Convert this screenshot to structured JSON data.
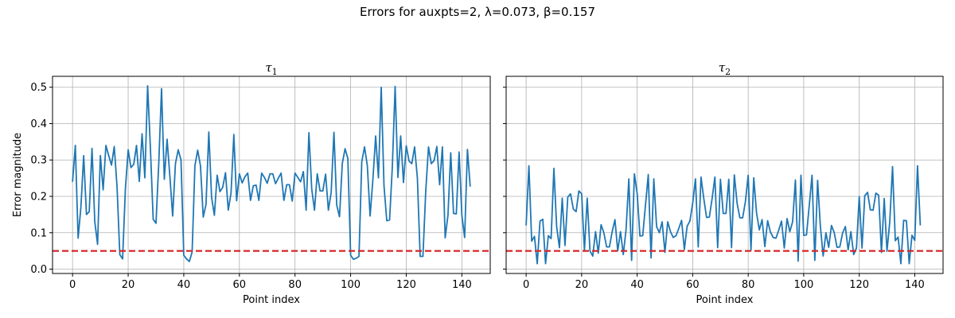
{
  "figure": {
    "suptitle": "Errors for auxpts=2, λ=0.073, β=0.157"
  },
  "chart_data": [
    {
      "type": "line",
      "title": "τ",
      "title_subscript": "1",
      "xlabel": "Point index",
      "ylabel": "Error magnitude",
      "xlim": [
        -7.2,
        150.2
      ],
      "ylim": [
        -0.012,
        0.53
      ],
      "xticks": [
        0,
        20,
        40,
        60,
        80,
        100,
        120,
        140
      ],
      "yticks": [
        0.0,
        0.1,
        0.2,
        0.3,
        0.4,
        0.5
      ],
      "ytick_labels": [
        "0.0",
        "0.1",
        "0.2",
        "0.3",
        "0.4",
        "0.5"
      ],
      "grid": true,
      "series_color": "#1f77b4",
      "threshold": {
        "y": 0.05,
        "color": "#d62728",
        "style": "dashed"
      },
      "x_start": 0,
      "values": [
        0.24,
        0.34,
        0.085,
        0.17,
        0.312,
        0.15,
        0.158,
        0.332,
        0.13,
        0.068,
        0.312,
        0.218,
        0.34,
        0.312,
        0.286,
        0.337,
        0.226,
        0.04,
        0.028,
        0.22,
        0.328,
        0.279,
        0.288,
        0.34,
        0.241,
        0.372,
        0.251,
        0.504,
        0.332,
        0.137,
        0.126,
        0.29,
        0.496,
        0.247,
        0.357,
        0.255,
        0.146,
        0.29,
        0.328,
        0.3,
        0.038,
        0.028,
        0.021,
        0.047,
        0.284,
        0.327,
        0.284,
        0.143,
        0.178,
        0.377,
        0.197,
        0.148,
        0.258,
        0.213,
        0.225,
        0.265,
        0.162,
        0.21,
        0.37,
        0.188,
        0.262,
        0.237,
        0.254,
        0.264,
        0.189,
        0.229,
        0.231,
        0.189,
        0.264,
        0.252,
        0.236,
        0.262,
        0.262,
        0.235,
        0.25,
        0.264,
        0.189,
        0.232,
        0.232,
        0.187,
        0.264,
        0.252,
        0.24,
        0.268,
        0.162,
        0.375,
        0.221,
        0.162,
        0.262,
        0.215,
        0.215,
        0.261,
        0.162,
        0.211,
        0.376,
        0.176,
        0.144,
        0.29,
        0.331,
        0.304,
        0.038,
        0.027,
        0.03,
        0.035,
        0.295,
        0.336,
        0.285,
        0.146,
        0.246,
        0.366,
        0.251,
        0.5,
        0.229,
        0.133,
        0.135,
        0.282,
        0.502,
        0.252,
        0.366,
        0.238,
        0.339,
        0.297,
        0.29,
        0.336,
        0.251,
        0.035,
        0.035,
        0.213,
        0.336,
        0.29,
        0.298,
        0.337,
        0.232,
        0.336,
        0.086,
        0.148,
        0.32,
        0.153,
        0.152,
        0.322,
        0.147,
        0.087,
        0.329,
        0.227
      ]
    },
    {
      "type": "line",
      "title": "τ",
      "title_subscript": "2",
      "xlabel": "Point index",
      "ylabel": "",
      "xlim": [
        -7.2,
        150.2
      ],
      "ylim": [
        -0.012,
        0.53
      ],
      "xticks": [
        0,
        20,
        40,
        60,
        80,
        100,
        120,
        140
      ],
      "yticks": [
        0.0,
        0.1,
        0.2,
        0.3,
        0.4,
        0.5
      ],
      "ytick_labels": [],
      "grid": true,
      "series_color": "#1f77b4",
      "threshold": {
        "y": 0.05,
        "color": "#d62728",
        "style": "dashed"
      },
      "x_start": 0,
      "values": [
        0.12,
        0.284,
        0.077,
        0.09,
        0.015,
        0.132,
        0.137,
        0.015,
        0.092,
        0.084,
        0.277,
        0.116,
        0.059,
        0.195,
        0.065,
        0.198,
        0.207,
        0.165,
        0.158,
        0.215,
        0.207,
        0.052,
        0.195,
        0.05,
        0.036,
        0.103,
        0.044,
        0.122,
        0.1,
        0.061,
        0.061,
        0.103,
        0.136,
        0.05,
        0.103,
        0.04,
        0.109,
        0.248,
        0.024,
        0.262,
        0.208,
        0.091,
        0.092,
        0.176,
        0.26,
        0.031,
        0.248,
        0.117,
        0.1,
        0.13,
        0.046,
        0.13,
        0.103,
        0.087,
        0.092,
        0.112,
        0.134,
        0.054,
        0.118,
        0.132,
        0.181,
        0.248,
        0.061,
        0.253,
        0.194,
        0.142,
        0.143,
        0.194,
        0.253,
        0.059,
        0.247,
        0.153,
        0.153,
        0.247,
        0.059,
        0.259,
        0.181,
        0.141,
        0.141,
        0.186,
        0.258,
        0.052,
        0.251,
        0.155,
        0.108,
        0.136,
        0.062,
        0.133,
        0.102,
        0.087,
        0.085,
        0.107,
        0.132,
        0.058,
        0.139,
        0.103,
        0.13,
        0.245,
        0.022,
        0.258,
        0.093,
        0.094,
        0.175,
        0.258,
        0.024,
        0.244,
        0.118,
        0.036,
        0.1,
        0.06,
        0.12,
        0.1,
        0.06,
        0.061,
        0.099,
        0.117,
        0.053,
        0.103,
        0.04,
        0.058,
        0.199,
        0.058,
        0.202,
        0.211,
        0.163,
        0.162,
        0.209,
        0.203,
        0.046,
        0.194,
        0.049,
        0.13,
        0.282,
        0.078,
        0.088,
        0.015,
        0.134,
        0.133,
        0.015,
        0.093,
        0.079,
        0.284,
        0.12
      ]
    }
  ]
}
